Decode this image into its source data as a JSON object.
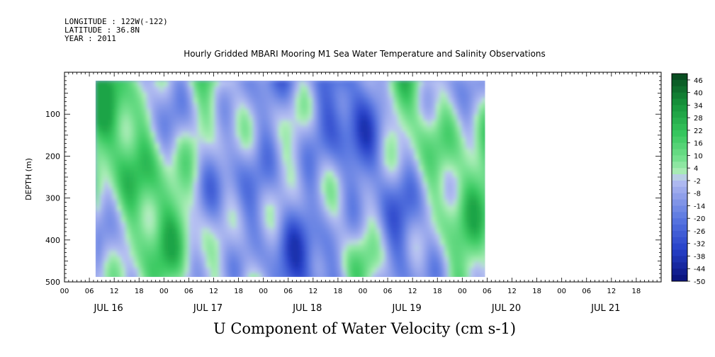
{
  "header": {
    "longitude": "LONGITUDE : 122W(-122)",
    "latitude": "LATITUDE : 36.8N",
    "year": "YEAR : 2011"
  },
  "chart_data": {
    "type": "heatmap",
    "title": "Hourly Gridded MBARI Mooring M1 Sea Water Temperature and Salinity Observations",
    "xlabel": "U Component of Water Velocity (cm s-1)",
    "ylabel": "DEPTH (m)",
    "x_hour_ticks": [
      "00",
      "06",
      "12",
      "18",
      "00",
      "06",
      "12",
      "18",
      "00",
      "06",
      "12",
      "18",
      "00",
      "06",
      "12",
      "18",
      "00",
      "06",
      "12",
      "18",
      "00",
      "06",
      "12",
      "18"
    ],
    "x_day_labels": [
      "JUL 16",
      "JUL 17",
      "JUL 18",
      "JUL 19",
      "JUL 20",
      "JUL 21"
    ],
    "xlim_hours": [
      0,
      144
    ],
    "data_extent_hours": [
      7.5,
      101.5
    ],
    "y_ticks": [
      100,
      200,
      300,
      400,
      500
    ],
    "ylim": [
      0,
      500
    ],
    "data_extent_depth": [
      20,
      488
    ],
    "colorbar": {
      "labels": [
        46,
        40,
        34,
        28,
        22,
        16,
        10,
        4,
        -2,
        -8,
        -14,
        -20,
        -26,
        -32,
        -38,
        -44,
        -50
      ],
      "range": [
        -50,
        49
      ],
      "step": 3
    },
    "colors": {
      "strong_negative": "#0b1a8f",
      "negative": "#3d5fd6",
      "weak_negative": "#a8b4ee",
      "weak_positive": "#a9ecb4",
      "positive": "#3fcf68",
      "strong_positive": "#0d5c2a"
    }
  }
}
